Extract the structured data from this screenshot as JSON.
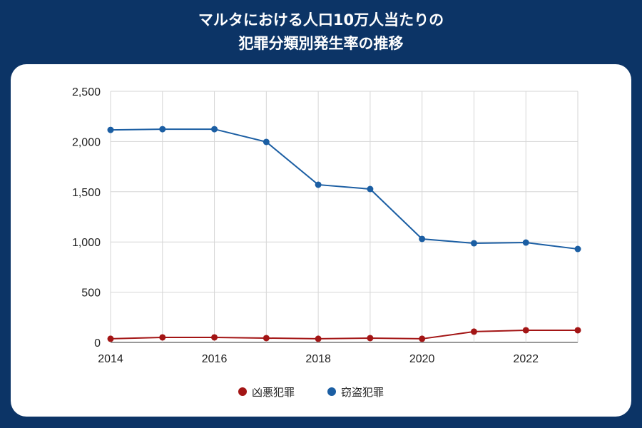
{
  "title_line1": "マルタにおける人口10万人当たりの",
  "title_line2": "犯罪分類別発生率の推移",
  "chart_data": {
    "type": "line",
    "x": [
      2014,
      2015,
      2016,
      2017,
      2018,
      2019,
      2020,
      2021,
      2022,
      2023
    ],
    "xticks": [
      "2014",
      "2016",
      "2018",
      "2020",
      "2022"
    ],
    "yticks": [
      "0",
      "500",
      "1,000",
      "1,500",
      "2,000",
      "2,500"
    ],
    "ylim": [
      0,
      2500
    ],
    "grid": true,
    "legend": "bottom",
    "series": [
      {
        "name": "凶悪犯罪",
        "color": "#a31515",
        "values": [
          36,
          50,
          50,
          43,
          36,
          43,
          36,
          107,
          121,
          121
        ]
      },
      {
        "name": "窃盗犯罪",
        "color": "#1b5ea3",
        "values": [
          2116,
          2123,
          2123,
          1996,
          1570,
          1527,
          1030,
          987,
          994,
          930
        ]
      }
    ]
  }
}
